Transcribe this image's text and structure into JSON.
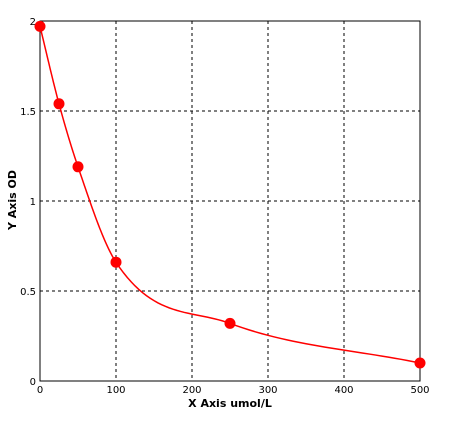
{
  "chart_data": {
    "type": "scatter",
    "title": "",
    "xlabel": "X Axis umol/L",
    "ylabel": "Y Axis OD",
    "xlim": [
      0,
      500
    ],
    "ylim": [
      0,
      2
    ],
    "x_ticks": [
      0,
      100,
      200,
      300,
      400,
      500
    ],
    "y_ticks": [
      0,
      0.5,
      1,
      1.5,
      2
    ],
    "x_tick_labels": [
      "0",
      "100",
      "200",
      "300",
      "400",
      "500"
    ],
    "y_tick_labels": [
      "0",
      "0.5",
      "1",
      "1.5",
      "2"
    ],
    "grid": true,
    "grid_style": "dashed",
    "legend": "none",
    "series": [
      {
        "x": [
          0,
          25,
          50,
          100,
          250,
          500
        ],
        "y": [
          1.97,
          1.54,
          1.19,
          0.66,
          0.32,
          0.1
        ],
        "color": "#ff0000",
        "fit_curve": true
      }
    ]
  }
}
